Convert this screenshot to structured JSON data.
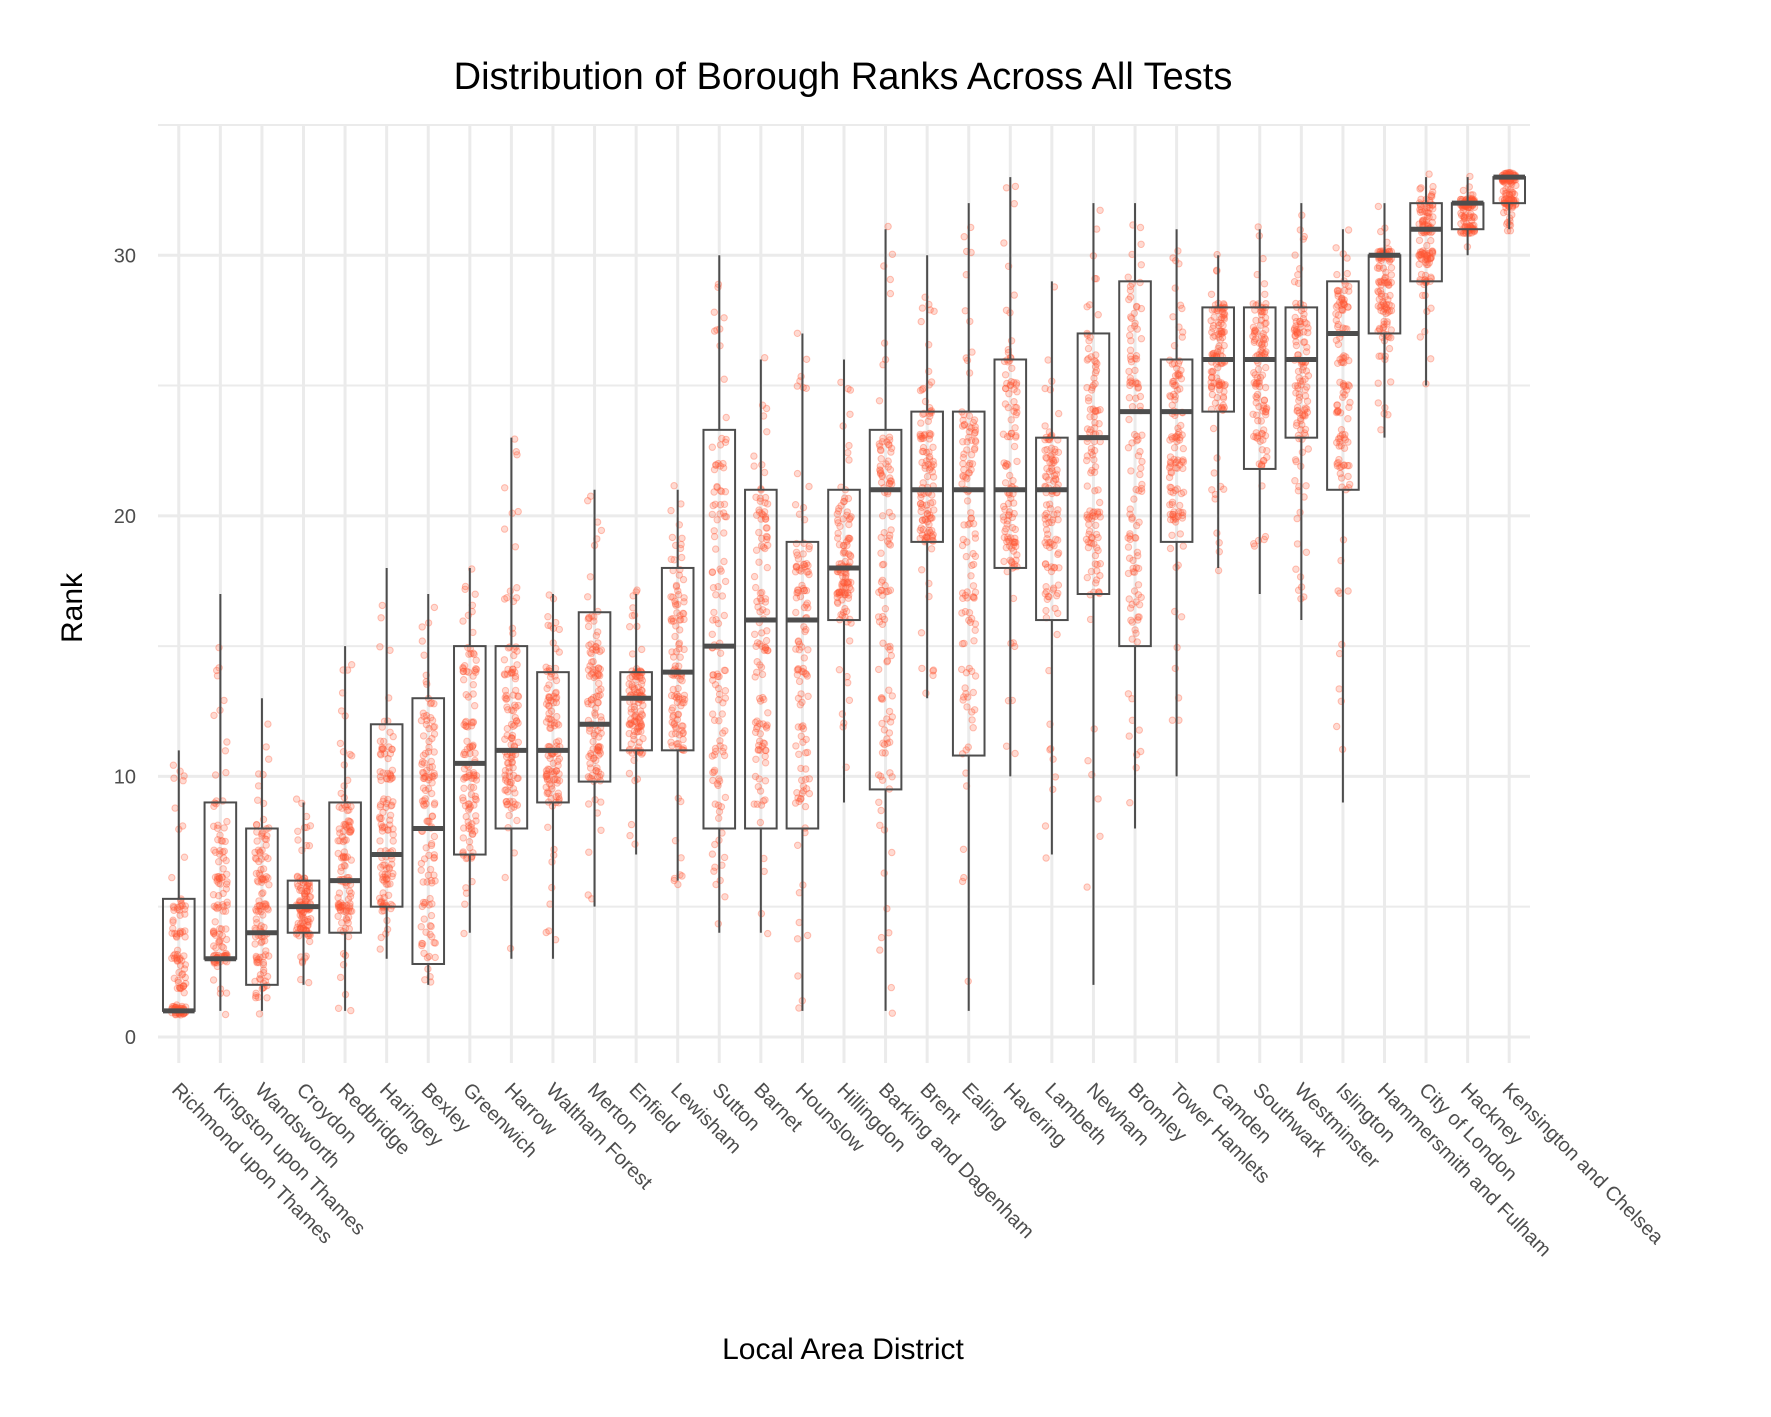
{
  "chart_data": {
    "type": "boxplot",
    "title": "Distribution of Borough Ranks Across All Tests",
    "xlabel": "Local Area District",
    "ylabel": "Rank",
    "ylim": [
      -1,
      35
    ],
    "y_ticks": [
      0,
      10,
      20,
      30
    ],
    "grid": true,
    "legend": "none",
    "point_color": "#ff5733",
    "box_color": "#4d4d4d",
    "categories": [
      "Richmond upon Thames",
      "Kingston upon Thames",
      "Wandsworth",
      "Croydon",
      "Redbridge",
      "Haringey",
      "Bexley",
      "Greenwich",
      "Harrow",
      "Waltham Forest",
      "Merton",
      "Enfield",
      "Lewisham",
      "Sutton",
      "Barnet",
      "Hounslow",
      "Hillingdon",
      "Barking and Dagenham",
      "Brent",
      "Ealing",
      "Havering",
      "Lambeth",
      "Newham",
      "Bromley",
      "Tower Hamlets",
      "Camden",
      "Southwark",
      "Westminster",
      "Islington",
      "Hammersmith and Fulham",
      "City of London",
      "Hackney",
      "Kensington and Chelsea"
    ],
    "boxes": [
      {
        "min": 1,
        "q1": 1,
        "median": 1,
        "q3": 5.3,
        "max": 11
      },
      {
        "min": 1,
        "q1": 3,
        "median": 3,
        "q3": 9,
        "max": 17
      },
      {
        "min": 1,
        "q1": 2,
        "median": 4,
        "q3": 8,
        "max": 13
      },
      {
        "min": 2,
        "q1": 4,
        "median": 5,
        "q3": 6,
        "max": 9
      },
      {
        "min": 1,
        "q1": 4,
        "median": 6,
        "q3": 9,
        "max": 15
      },
      {
        "min": 3,
        "q1": 5,
        "median": 7,
        "q3": 12,
        "max": 18
      },
      {
        "min": 2,
        "q1": 2.8,
        "median": 8,
        "q3": 13,
        "max": 17
      },
      {
        "min": 4,
        "q1": 7,
        "median": 10.5,
        "q3": 15,
        "max": 18
      },
      {
        "min": 3,
        "q1": 8,
        "median": 11,
        "q3": 15,
        "max": 23
      },
      {
        "min": 3,
        "q1": 9,
        "median": 11,
        "q3": 14,
        "max": 17
      },
      {
        "min": 5,
        "q1": 9.8,
        "median": 12,
        "q3": 16.3,
        "max": 21
      },
      {
        "min": 7,
        "q1": 11,
        "median": 13,
        "q3": 14,
        "max": 17
      },
      {
        "min": 6,
        "q1": 11,
        "median": 14,
        "q3": 18,
        "max": 21
      },
      {
        "min": 4,
        "q1": 8,
        "median": 15,
        "q3": 23.3,
        "max": 30
      },
      {
        "min": 4,
        "q1": 8,
        "median": 16,
        "q3": 21,
        "max": 26
      },
      {
        "min": 1,
        "q1": 8,
        "median": 16,
        "q3": 19,
        "max": 27
      },
      {
        "min": 9,
        "q1": 16,
        "median": 18,
        "q3": 21,
        "max": 26
      },
      {
        "min": 1,
        "q1": 9.5,
        "median": 21,
        "q3": 23.3,
        "max": 31
      },
      {
        "min": 13,
        "q1": 19,
        "median": 21,
        "q3": 24,
        "max": 30
      },
      {
        "min": 1,
        "q1": 10.8,
        "median": 21,
        "q3": 24,
        "max": 32
      },
      {
        "min": 10,
        "q1": 18,
        "median": 21,
        "q3": 26,
        "max": 33
      },
      {
        "min": 7,
        "q1": 16,
        "median": 21,
        "q3": 23,
        "max": 29
      },
      {
        "min": 2,
        "q1": 17,
        "median": 23,
        "q3": 27,
        "max": 32
      },
      {
        "min": 8,
        "q1": 15,
        "median": 24,
        "q3": 29,
        "max": 32
      },
      {
        "min": 10,
        "q1": 19,
        "median": 24,
        "q3": 26,
        "max": 31
      },
      {
        "min": 18,
        "q1": 24,
        "median": 26,
        "q3": 28,
        "max": 30
      },
      {
        "min": 17,
        "q1": 21.8,
        "median": 26,
        "q3": 28,
        "max": 31
      },
      {
        "min": 16,
        "q1": 23,
        "median": 26,
        "q3": 28,
        "max": 32
      },
      {
        "min": 9,
        "q1": 21,
        "median": 27,
        "q3": 29,
        "max": 31
      },
      {
        "min": 23,
        "q1": 27,
        "median": 30,
        "q3": 30,
        "max": 32
      },
      {
        "min": 25,
        "q1": 29,
        "median": 31,
        "q3": 32,
        "max": 33
      },
      {
        "min": 30,
        "q1": 31,
        "median": 32,
        "q3": 32,
        "max": 33
      },
      {
        "min": 31,
        "q1": 32,
        "median": 33,
        "q3": 33,
        "max": 33
      }
    ]
  }
}
